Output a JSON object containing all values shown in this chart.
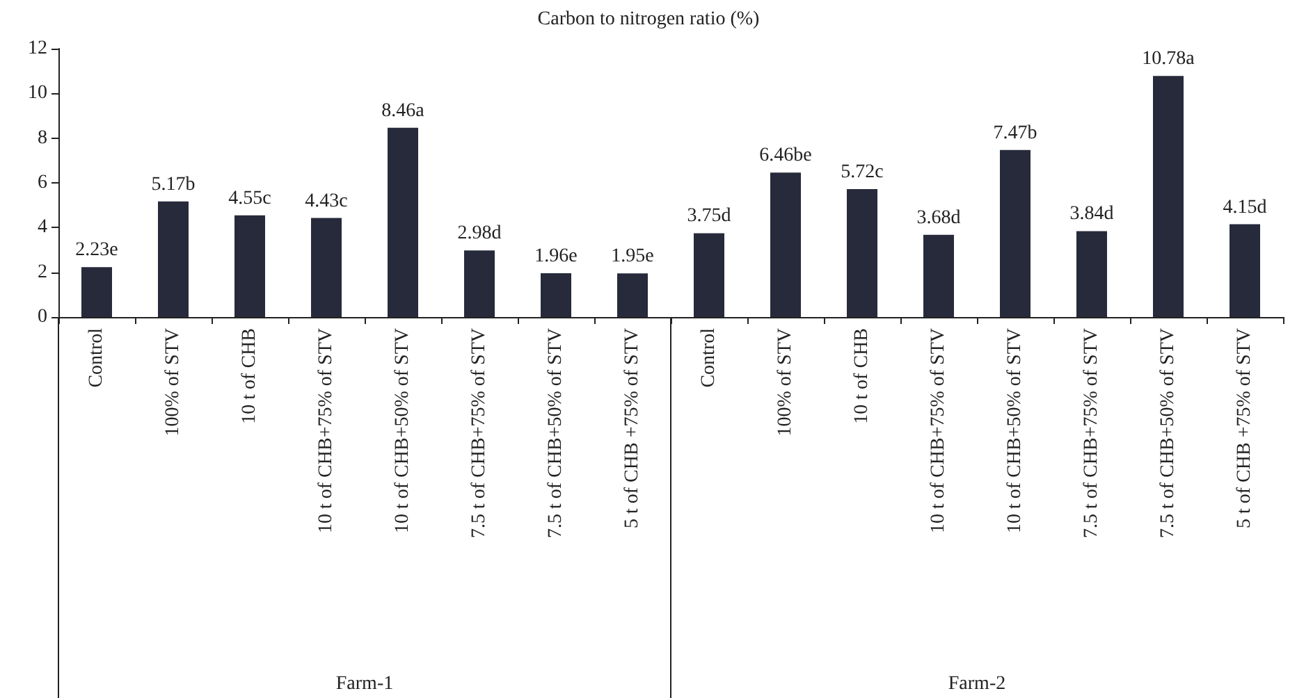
{
  "chart_data": {
    "type": "bar",
    "title": "Carbon to nitrogen ratio (%)",
    "categories": [
      "Control",
      "100% of STV",
      "10 t of CHB",
      "10 t of CHB+75% of STV",
      "10 t of CHB+50% of STV",
      "7.5 t of CHB+75% of STV",
      "7.5 t of CHB+50% of STV",
      "5 t of CHB +75% of STV",
      "Control",
      "100% of STV",
      "10 t of CHB",
      "10 t of CHB+75% of STV",
      "10 t of CHB+50% of STV",
      "7.5 t of CHB+75% of STV",
      "7.5 t of CHB+50% of STV",
      "5 t of CHB +75% of STV"
    ],
    "values": [
      2.23,
      5.17,
      4.55,
      4.43,
      8.46,
      2.98,
      1.96,
      1.95,
      3.75,
      6.46,
      5.72,
      3.68,
      7.47,
      3.84,
      10.78,
      4.15
    ],
    "value_labels": [
      "2.23e",
      "5.17b",
      "4.55c",
      "4.43c",
      "8.46a",
      "2.98d",
      "1.96e",
      "1.95e",
      "3.75d",
      "6.46be",
      "5.72c",
      "3.68d",
      "7.47b",
      "3.84d",
      "10.78a",
      "4.15d"
    ],
    "color": "#262a3a",
    "annotations": [
      "Farm-1",
      "Farm-2"
    ],
    "ylim": [
      0,
      12
    ],
    "yticks": [
      0,
      2,
      4,
      6,
      8,
      10,
      12
    ]
  }
}
